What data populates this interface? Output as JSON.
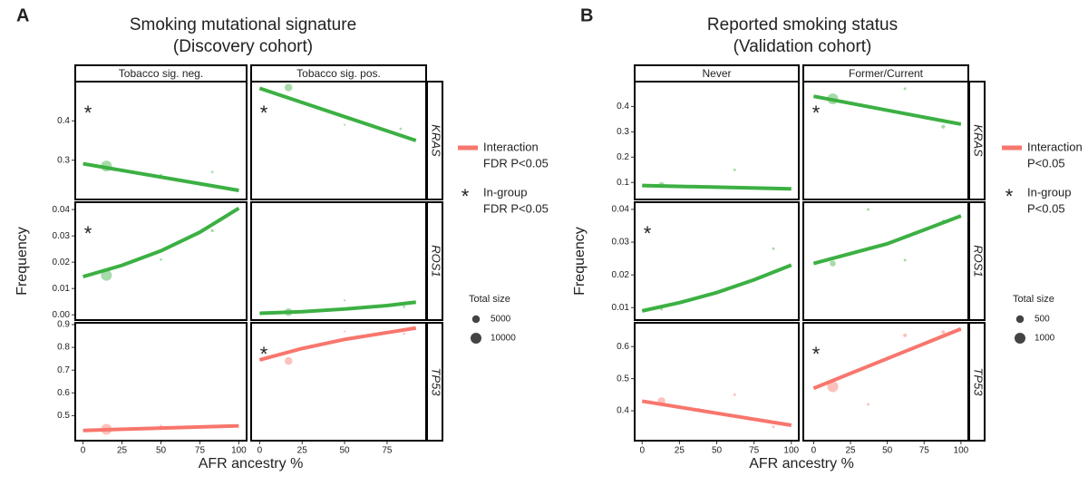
{
  "chart_data": [
    {
      "type": "scatter",
      "panel_letter": "A",
      "title": "Smoking mutational signature",
      "subtitle": "(Discovery cohort)",
      "xlabel": "AFR ancestry %",
      "ylabel": "Frequency",
      "columns": [
        {
          "label": "Tobacco sig. neg.",
          "xlim": [
            -5,
            105
          ],
          "xticks": [
            0,
            25,
            50,
            75,
            100
          ]
        },
        {
          "label": "Tobacco sig. pos.",
          "xlim": [
            -5,
            98
          ],
          "xticks": [
            0,
            25,
            50,
            75
          ]
        }
      ],
      "rows": [
        {
          "name": "KRAS",
          "ylim": [
            0.2,
            0.5
          ],
          "yticks": [
            0.3,
            0.4
          ],
          "panels": [
            {
              "color": "#3cb043",
              "points": {
                "x": [
                  15,
                  50,
                  83
                ],
                "values": [
                  0.285,
                  0.262,
                  0.27
                ],
                "sizes": [
                  10000,
                  500,
                  500
                ]
              },
              "fit": {
                "x": [
                  0,
                  100
                ],
                "values": [
                  0.291,
                  0.223
                ]
              },
              "annotation": "*"
            },
            {
              "color": "#3cb043",
              "points": {
                "x": [
                  17,
                  50,
                  83
                ],
                "values": [
                  0.485,
                  0.39,
                  0.38
                ],
                "sizes": [
                  5000,
                  300,
                  500
                ]
              },
              "fit": {
                "x": [
                  0,
                  92
                ],
                "values": [
                  0.483,
                  0.35
                ]
              },
              "annotation": "*"
            }
          ]
        },
        {
          "name": "ROS1",
          "ylim": [
            -0.002,
            0.0428
          ],
          "yticks": [
            {
              "value": 0,
              "label": "0.00"
            },
            0.01,
            0.02,
            0.03,
            0.04
          ],
          "panels": [
            {
              "color": "#3cb043",
              "points": {
                "x": [
                  15,
                  50,
                  83
                ],
                "values": [
                  0.015,
                  0.021,
                  0.032
                ],
                "sizes": [
                  10000,
                  500,
                  800
                ]
              },
              "fit": {
                "x": [
                  0,
                  25,
                  50,
                  75,
                  100
                ],
                "values": [
                  0.0145,
                  0.0188,
                  0.0243,
                  0.0314,
                  0.0405
                ]
              },
              "annotation": "*"
            },
            {
              "color": "#3cb043",
              "points": {
                "x": [
                  17,
                  50,
                  85
                ],
                "values": [
                  0.001,
                  0.0055,
                  0.003
                ],
                "sizes": [
                  5000,
                  300,
                  500
                ]
              },
              "fit": {
                "x": [
                  0,
                  25,
                  50,
                  75,
                  92
                ],
                "values": [
                  0.0006,
                  0.0012,
                  0.0022,
                  0.0035,
                  0.0048
                ]
              }
            }
          ]
        },
        {
          "name": "TP53",
          "ylim": [
            0.39,
            0.908
          ],
          "yticks": [
            0.5,
            0.6,
            0.7,
            0.8,
            0.9
          ],
          "panels": [
            {
              "color": "#f8766d",
              "points": {
                "x": [
                  15,
                  50,
                  83
                ],
                "values": [
                  0.44,
                  0.455,
                  0.45
                ],
                "sizes": [
                  10000,
                  500,
                  500
                ]
              },
              "fit": {
                "x": [
                  0,
                  100
                ],
                "values": [
                  0.435,
                  0.455
                ]
              }
            },
            {
              "color": "#f8766d",
              "points": {
                "x": [
                  17,
                  50,
                  85
                ],
                "values": [
                  0.74,
                  0.87,
                  0.86
                ],
                "sizes": [
                  5000,
                  300,
                  500
                ]
              },
              "fit": {
                "x": [
                  0,
                  25,
                  50,
                  75,
                  92
                ],
                "values": [
                  0.745,
                  0.795,
                  0.835,
                  0.865,
                  0.885
                ]
              },
              "annotation": "*"
            }
          ]
        }
      ],
      "legend": {
        "interaction_color": "#f8766d",
        "line": [
          "Interaction",
          "FDR P<0.05"
        ],
        "star": "*",
        "star_text": [
          "In-group",
          "FDR P<0.05"
        ],
        "size_title": "Total size",
        "sizes": [
          5000,
          10000
        ]
      }
    },
    {
      "type": "scatter",
      "panel_letter": "B",
      "title": "Reported smoking status",
      "subtitle": "(Validation cohort)",
      "xlabel": "AFR ancestry %",
      "ylabel": "Frequency",
      "columns": [
        {
          "label": "Never",
          "xlim": [
            -5,
            105
          ],
          "xticks": [
            0,
            25,
            50,
            75,
            100
          ]
        },
        {
          "label": "Former/Current",
          "xlim": [
            -7,
            105
          ],
          "xticks": [
            0,
            25,
            50,
            75,
            100
          ]
        }
      ],
      "rows": [
        {
          "name": "KRAS",
          "ylim": [
            0.033,
            0.498
          ],
          "yticks": [
            0.1,
            0.2,
            0.3,
            0.4
          ],
          "panels": [
            {
              "color": "#3cb043",
              "points": {
                "x": [
                  13,
                  62
                ],
                "values": [
                  0.09,
                  0.15
                ],
                "sizes": [
                  300,
                  60
                ]
              },
              "fit": {
                "x": [
                  0,
                  100
                ],
                "values": [
                  0.088,
                  0.075
                ]
              }
            },
            {
              "color": "#3cb043",
              "points": {
                "x": [
                  13,
                  62,
                  88
                ],
                "values": [
                  0.43,
                  0.47,
                  0.32
                ],
                "sizes": [
                  1000,
                  60,
                  120
                ]
              },
              "fit": {
                "x": [
                  0,
                  100
                ],
                "values": [
                  0.44,
                  0.33
                ]
              },
              "annotation": "*"
            }
          ]
        },
        {
          "name": "ROS1",
          "ylim": [
            0.0062,
            0.0422
          ],
          "yticks": [
            0.01,
            0.02,
            0.03,
            0.04
          ],
          "panels": [
            {
              "color": "#3cb043",
              "points": {
                "x": [
                  13,
                  88
                ],
                "values": [
                  0.0095,
                  0.028
                ],
                "sizes": [
                  60,
                  60
                ]
              },
              "fit": {
                "x": [
                  0,
                  25,
                  50,
                  75,
                  100
                ],
                "values": [
                  0.009,
                  0.0115,
                  0.0146,
                  0.0185,
                  0.023
                ]
              },
              "annotation": "*"
            },
            {
              "color": "#3cb043",
              "points": {
                "x": [
                  13,
                  37,
                  62,
                  88
                ],
                "values": [
                  0.0235,
                  0.04,
                  0.0245,
                  0.0365
                ],
                "sizes": [
                  300,
                  60,
                  60,
                  60
                ]
              },
              "fit": {
                "x": [
                  0,
                  50,
                  100
                ],
                "values": [
                  0.0235,
                  0.0295,
                  0.038
                ]
              }
            }
          ]
        },
        {
          "name": "TP53",
          "ylim": [
            0.307,
            0.674
          ],
          "yticks": [
            0.4,
            0.5,
            0.6
          ],
          "panels": [
            {
              "color": "#f8766d",
              "points": {
                "x": [
                  13,
                  38,
                  62,
                  88
                ],
                "values": [
                  0.43,
                  0.405,
                  0.45,
                  0.35
                ],
                "sizes": [
                  500,
                  60,
                  60,
                  60
                ]
              },
              "fit": {
                "x": [
                  0,
                  100
                ],
                "values": [
                  0.43,
                  0.355
                ]
              }
            },
            {
              "color": "#f8766d",
              "points": {
                "x": [
                  13,
                  37,
                  62,
                  88
                ],
                "values": [
                  0.475,
                  0.42,
                  0.635,
                  0.645
                ],
                "sizes": [
                  1000,
                  60,
                  120,
                  120
                ]
              },
              "fit": {
                "x": [
                  0,
                  100
                ],
                "values": [
                  0.47,
                  0.655
                ]
              },
              "annotation": "*"
            }
          ]
        }
      ],
      "legend": {
        "interaction_color": "#f8766d",
        "line": [
          "Interaction",
          "P<0.05"
        ],
        "star": "*",
        "star_text": [
          "In-group",
          "P<0.05"
        ],
        "size_title": "Total size",
        "sizes": [
          500,
          1000
        ]
      }
    }
  ]
}
